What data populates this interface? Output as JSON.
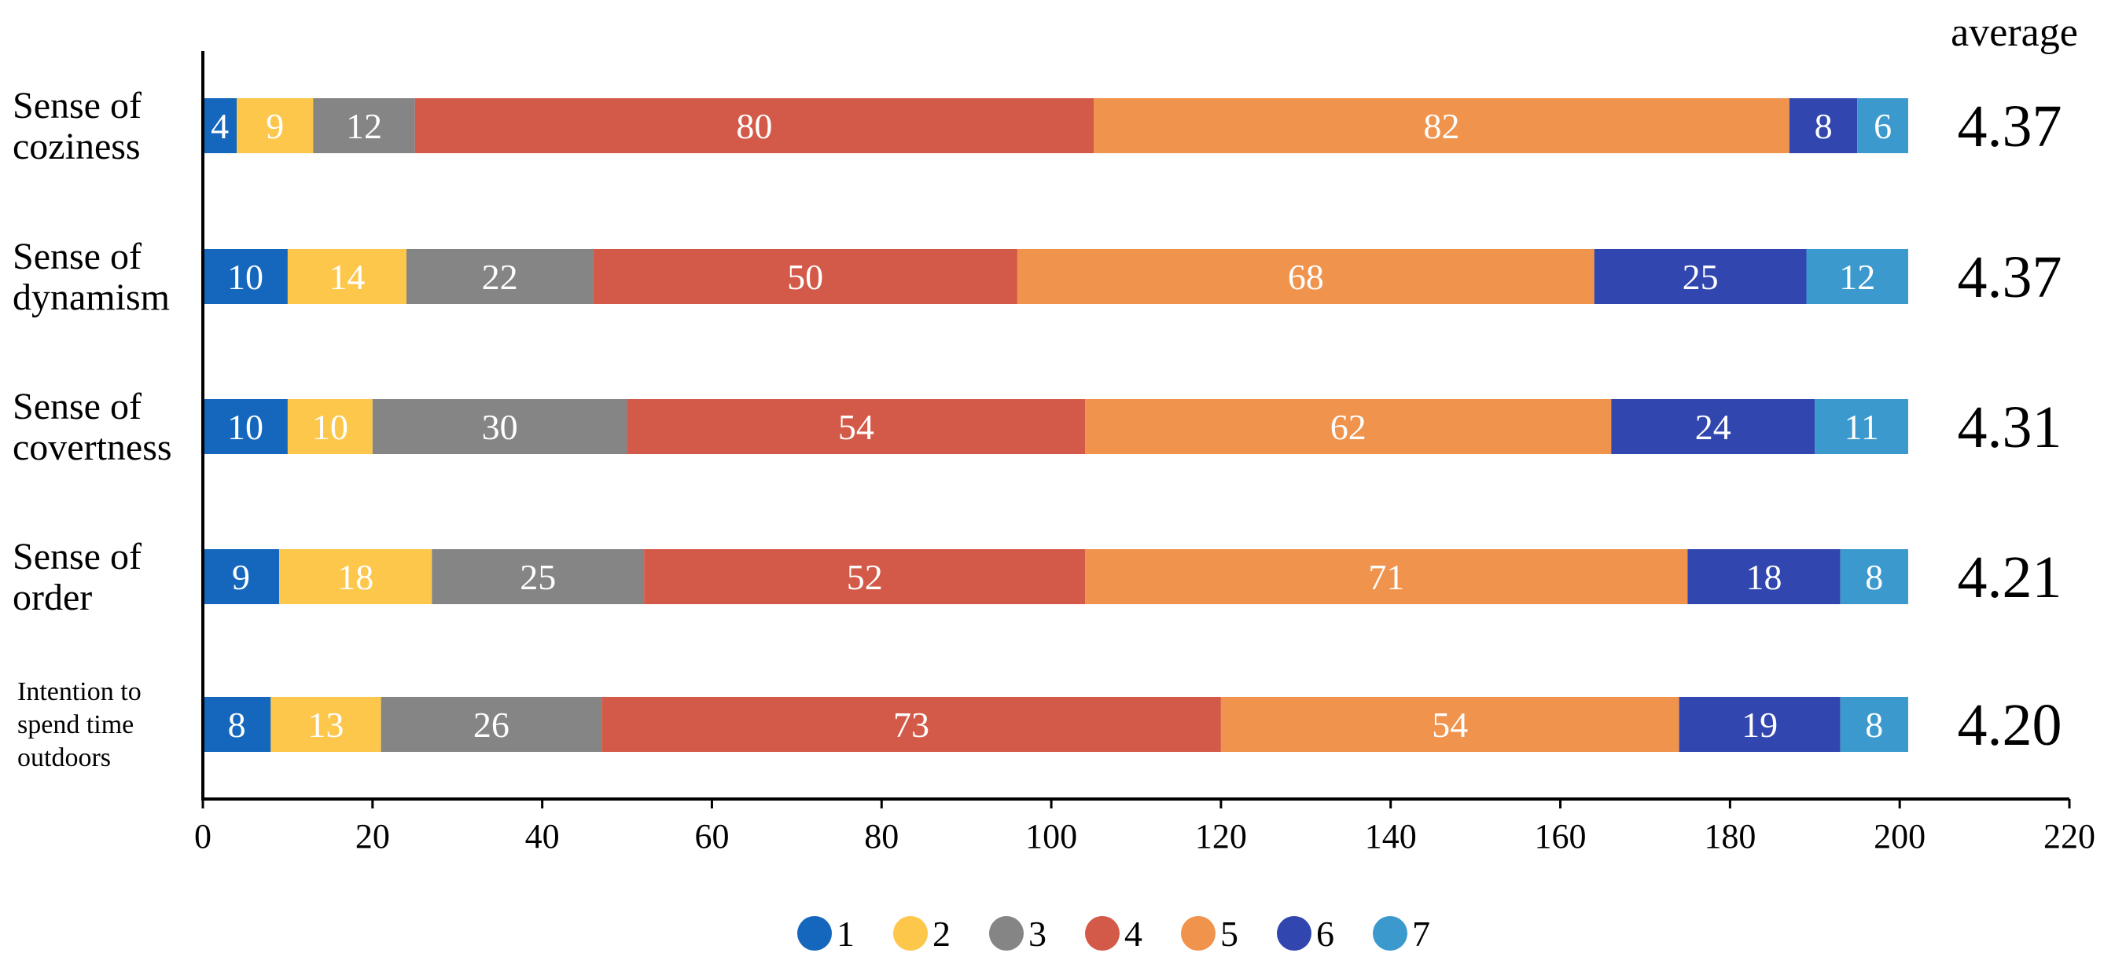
{
  "chart_data": {
    "type": "bar",
    "orientation": "horizontal",
    "stacked": true,
    "title": "",
    "xlabel": "",
    "ylabel": "",
    "xlim": [
      0,
      220
    ],
    "x_ticks": [
      0,
      20,
      40,
      60,
      80,
      100,
      120,
      140,
      160,
      180,
      200,
      220
    ],
    "grid": false,
    "legend_position": "bottom-center",
    "average_label": "average",
    "categories": [
      {
        "label_lines": [
          "Sense of",
          "coziness"
        ],
        "small": false
      },
      {
        "label_lines": [
          "Sense of",
          "dynamism"
        ],
        "small": false
      },
      {
        "label_lines": [
          "Sense of",
          "covertness"
        ],
        "small": false
      },
      {
        "label_lines": [
          "Sense of",
          "order"
        ],
        "small": false
      },
      {
        "label_lines": [
          "Intention to",
          "spend time",
          "outdoors"
        ],
        "small": true
      }
    ],
    "averages": [
      "4.37",
      "4.37",
      "4.31",
      "4.21",
      "4.20"
    ],
    "series": [
      {
        "name": "1",
        "color": "#1467BD",
        "values": [
          4,
          10,
          10,
          9,
          8
        ]
      },
      {
        "name": "2",
        "color": "#FCC74B",
        "values": [
          9,
          14,
          10,
          18,
          13
        ]
      },
      {
        "name": "3",
        "color": "#858585",
        "values": [
          12,
          22,
          30,
          25,
          26
        ]
      },
      {
        "name": "4",
        "color": "#D35A48",
        "values": [
          80,
          50,
          54,
          52,
          73
        ]
      },
      {
        "name": "5",
        "color": "#EF934D",
        "values": [
          82,
          68,
          62,
          71,
          54
        ]
      },
      {
        "name": "6",
        "color": "#3146AE",
        "values": [
          8,
          25,
          24,
          18,
          19
        ]
      },
      {
        "name": "7",
        "color": "#3C99CE",
        "values": [
          6,
          12,
          11,
          8,
          8
        ]
      }
    ]
  }
}
